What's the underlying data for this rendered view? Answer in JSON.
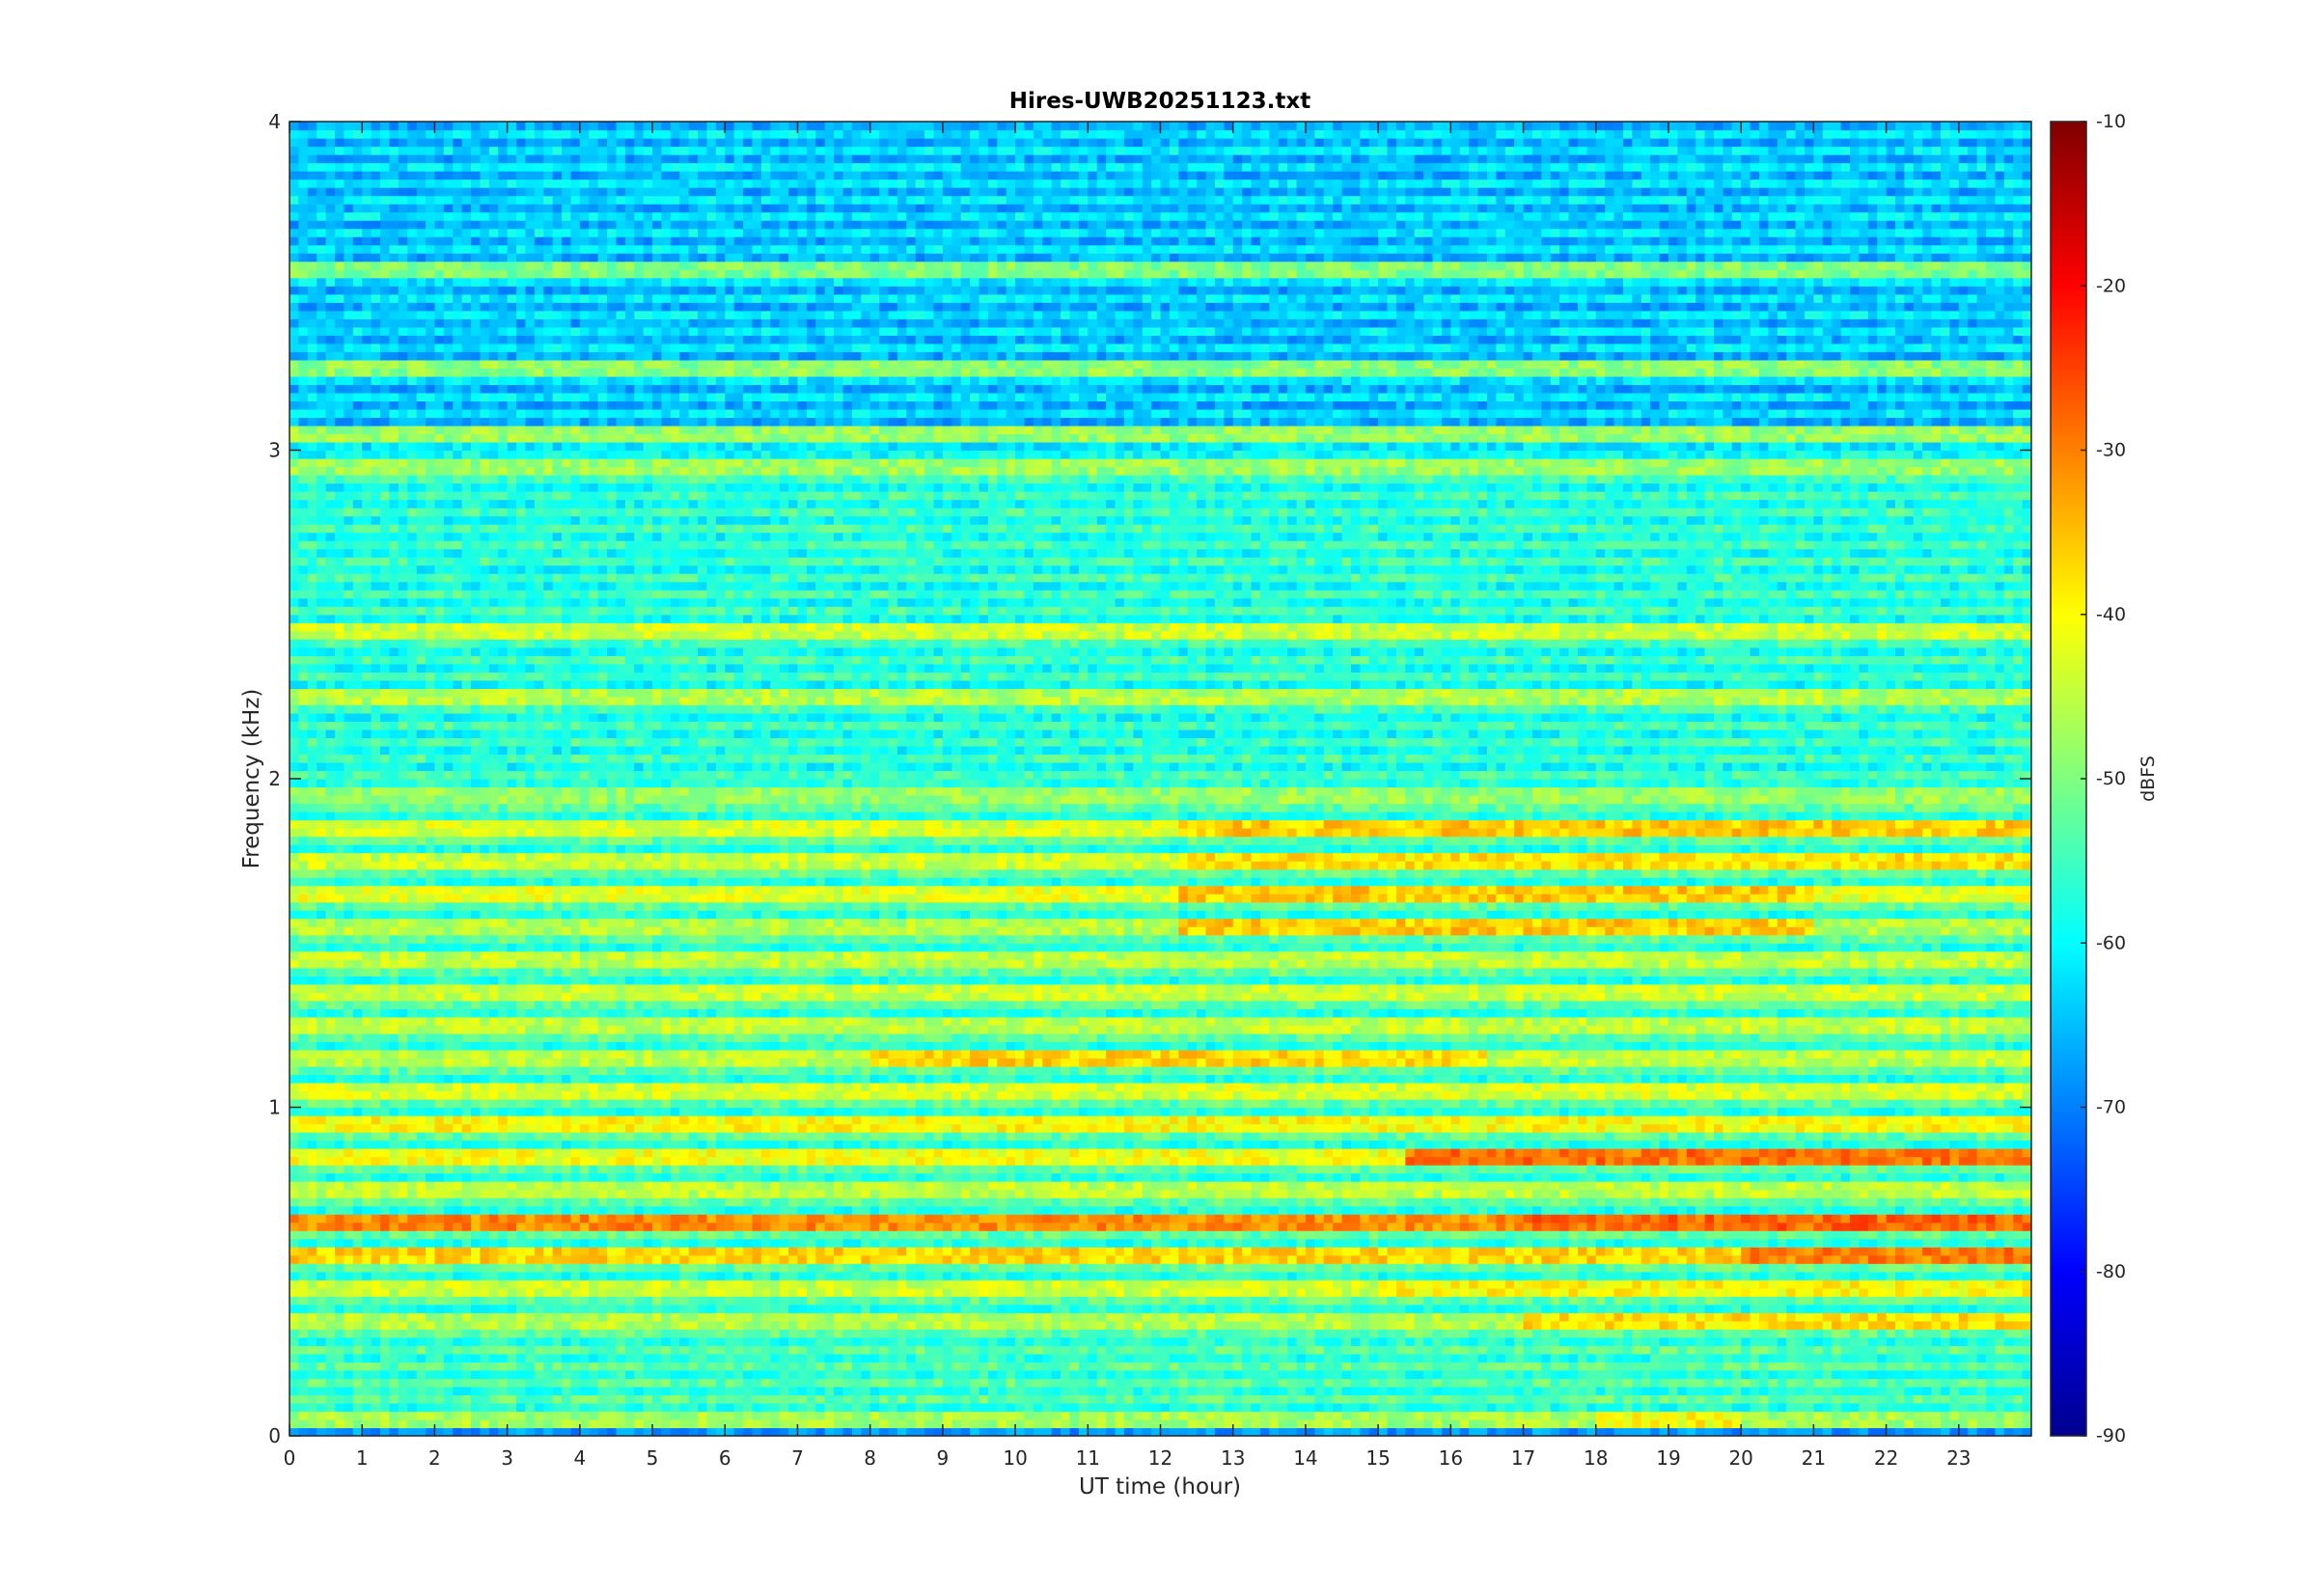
{
  "chart_data": {
    "type": "heatmap",
    "title": "Hires-UWB20251123.txt",
    "xlabel": "UT time (hour)",
    "ylabel": "Frequency (kHz)",
    "xlim": [
      0,
      24
    ],
    "ylim": [
      0,
      4
    ],
    "x_ticks": [
      "0",
      "1",
      "2",
      "3",
      "4",
      "5",
      "6",
      "7",
      "8",
      "9",
      "10",
      "11",
      "12",
      "13",
      "14",
      "15",
      "16",
      "17",
      "18",
      "19",
      "20",
      "21",
      "22",
      "23"
    ],
    "y_ticks": [
      "0",
      "1",
      "2",
      "3",
      "4"
    ],
    "colorbar": {
      "label": "dBFS",
      "range": [
        -90,
        -10
      ],
      "ticks": [
        "-90",
        "-80",
        "-70",
        "-60",
        "-50",
        "-40",
        "-30",
        "-20",
        "-10"
      ],
      "colormap": "jet"
    },
    "grid": false,
    "bands": [
      {
        "f_khz": 0.05,
        "level_dbfs": -47,
        "segments": [
          {
            "from_h": 18.0,
            "to_h": 20.0,
            "level_dbfs": -40
          }
        ]
      },
      {
        "f_khz": 0.35,
        "level_dbfs": -46,
        "segments": [
          {
            "from_h": 17.0,
            "to_h": 24.0,
            "level_dbfs": -38
          }
        ]
      },
      {
        "f_khz": 0.45,
        "level_dbfs": -44,
        "segments": [
          {
            "from_h": 15.0,
            "to_h": 24.0,
            "level_dbfs": -40
          }
        ]
      },
      {
        "f_khz": 0.55,
        "level_dbfs": -37,
        "segments": [
          {
            "from_h": 20.0,
            "to_h": 24.0,
            "level_dbfs": -30
          }
        ]
      },
      {
        "f_khz": 0.65,
        "level_dbfs": -31,
        "segments": [
          {
            "from_h": 17.0,
            "to_h": 24.0,
            "level_dbfs": -28
          }
        ]
      },
      {
        "f_khz": 0.75,
        "level_dbfs": -45
      },
      {
        "f_khz": 0.85,
        "level_dbfs": -41,
        "segments": [
          {
            "from_h": 15.4,
            "to_h": 24.0,
            "level_dbfs": -29
          }
        ]
      },
      {
        "f_khz": 0.95,
        "level_dbfs": -40
      },
      {
        "f_khz": 1.05,
        "level_dbfs": -43
      },
      {
        "f_khz": 1.15,
        "level_dbfs": -45,
        "segments": [
          {
            "from_h": 8.0,
            "to_h": 16.5,
            "level_dbfs": -37
          }
        ]
      },
      {
        "f_khz": 1.25,
        "level_dbfs": -45
      },
      {
        "f_khz": 1.35,
        "level_dbfs": -44
      },
      {
        "f_khz": 1.45,
        "level_dbfs": -45
      },
      {
        "f_khz": 1.55,
        "level_dbfs": -46,
        "segments": [
          {
            "from_h": 12.3,
            "to_h": 21.0,
            "level_dbfs": -36
          }
        ]
      },
      {
        "f_khz": 1.65,
        "level_dbfs": -42,
        "segments": [
          {
            "from_h": 12.3,
            "to_h": 21.0,
            "level_dbfs": -36
          }
        ]
      },
      {
        "f_khz": 1.75,
        "level_dbfs": -44,
        "segments": [
          {
            "from_h": 12.3,
            "to_h": 24.0,
            "level_dbfs": -38
          }
        ]
      },
      {
        "f_khz": 1.85,
        "level_dbfs": -43,
        "segments": [
          {
            "from_h": 12.3,
            "to_h": 24.0,
            "level_dbfs": -36
          }
        ]
      },
      {
        "f_khz": 1.95,
        "level_dbfs": -48
      },
      {
        "f_khz": 2.25,
        "level_dbfs": -46
      },
      {
        "f_khz": 2.45,
        "level_dbfs": -44
      },
      {
        "f_khz": 2.95,
        "level_dbfs": -48
      },
      {
        "f_khz": 3.05,
        "level_dbfs": -48
      },
      {
        "f_khz": 3.25,
        "level_dbfs": -49
      },
      {
        "f_khz": 3.55,
        "level_dbfs": -50
      }
    ],
    "background_level_dbfs": {
      "f_0_to_2_khz": -55,
      "f_2_to_3_khz": -57,
      "f_3_to_4_khz": -64
    }
  }
}
